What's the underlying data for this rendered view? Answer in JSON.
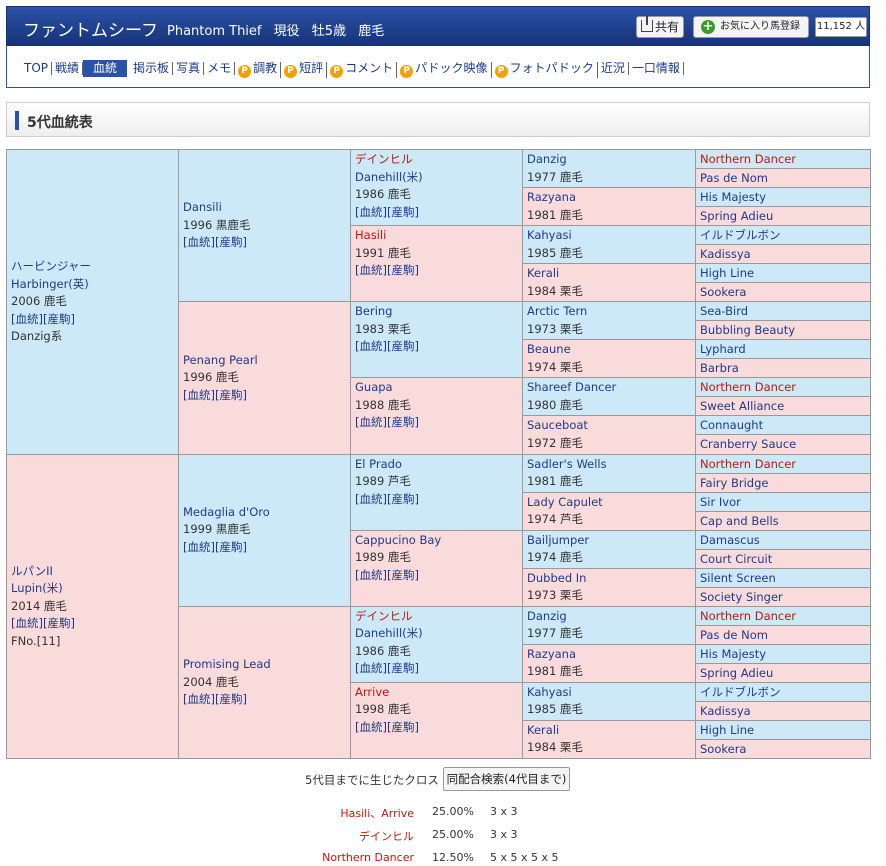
{
  "header": {
    "title": "ファントムシーフ",
    "name_en": "Phantom Thief",
    "status": "現役",
    "sex_age": "牡5歳",
    "color": "鹿毛",
    "share_label": "共有",
    "fav_label": "お気に入り馬登録",
    "fav_count": "11,152 人"
  },
  "nav": {
    "items": [
      "TOP",
      "戦績",
      "血統",
      "掲示板",
      "写真",
      "メモ",
      "調教",
      "短評",
      "コメント",
      "パドック映像",
      "フォトパドック",
      "近況",
      "一口情報"
    ],
    "active": "血統",
    "premium_badge": "P"
  },
  "section": {
    "title": "5代血統表"
  },
  "pedigree": {
    "link1": "[血統]",
    "link2": "[産駒]",
    "g1": [
      {
        "name_ja": "ハービンジャー",
        "name": "Harbinger(英)",
        "info": "2006 鹿毛",
        "extra": "Danzig系"
      },
      {
        "name_ja": "ルパンII",
        "name": "Lupin(米)",
        "info": "2014 鹿毛",
        "extra": "FNo.[11]"
      }
    ],
    "g2": [
      {
        "name": "Dansili",
        "info": "1996 黒鹿毛"
      },
      {
        "name": "Penang Pearl",
        "info": "1996 鹿毛"
      },
      {
        "name": "Medaglia d'Oro",
        "info": "1999 黒鹿毛"
      },
      {
        "name": "Promising Lead",
        "info": "2004 鹿毛"
      }
    ],
    "g3": [
      {
        "name": "デインヒル",
        "name2": "Danehill(米)",
        "info": "1986 鹿毛"
      },
      {
        "name": "Hasili",
        "info": "1991 鹿毛"
      },
      {
        "name": "Bering",
        "info": "1983 栗毛"
      },
      {
        "name": "Guapa",
        "info": "1988 鹿毛"
      },
      {
        "name": "El Prado",
        "info": "1989 芦毛"
      },
      {
        "name": "Cappucino Bay",
        "info": "1989 鹿毛"
      },
      {
        "name": "デインヒル",
        "name2": "Danehill(米)",
        "info": "1986 鹿毛"
      },
      {
        "name": "Arrive",
        "info": "1998 鹿毛"
      }
    ],
    "g4": [
      {
        "name": "Danzig",
        "info": "1977 鹿毛"
      },
      {
        "name": "Razyana",
        "info": "1981 鹿毛"
      },
      {
        "name": "Kahyasi",
        "info": "1985 鹿毛"
      },
      {
        "name": "Kerali",
        "info": "1984 栗毛"
      },
      {
        "name": "Arctic Tern",
        "info": "1973 栗毛"
      },
      {
        "name": "Beaune",
        "info": "1974 栗毛"
      },
      {
        "name": "Shareef Dancer",
        "info": "1980 鹿毛"
      },
      {
        "name": "Sauceboat",
        "info": "1972 鹿毛"
      },
      {
        "name": "Sadler's Wells",
        "info": "1981 鹿毛"
      },
      {
        "name": "Lady Capulet",
        "info": "1974 芦毛"
      },
      {
        "name": "Bailjumper",
        "info": "1974 鹿毛"
      },
      {
        "name": "Dubbed In",
        "info": "1973 栗毛"
      },
      {
        "name": "Danzig",
        "info": "1977 鹿毛"
      },
      {
        "name": "Razyana",
        "info": "1981 鹿毛"
      },
      {
        "name": "Kahyasi",
        "info": "1985 鹿毛"
      },
      {
        "name": "Kerali",
        "info": "1984 栗毛"
      }
    ],
    "g5": [
      "Northern Dancer",
      "Pas de Nom",
      "His Majesty",
      "Spring Adieu",
      "イルドブルボン",
      "Kadissya",
      "High Line",
      "Sookera",
      "Sea-Bird",
      "Bubbling Beauty",
      "Lyphard",
      "Barbra",
      "Northern Dancer",
      "Sweet Alliance",
      "Connaught",
      "Cranberry Sauce",
      "Northern Dancer",
      "Fairy Bridge",
      "Sir Ivor",
      "Cap and Bells",
      "Damascus",
      "Court Circuit",
      "Silent Screen",
      "Society Singer",
      "Northern Dancer",
      "Pas de Nom",
      "His Majesty",
      "Spring Adieu",
      "イルドブルボン",
      "Kadissya",
      "High Line",
      "Sookera"
    ]
  },
  "cross": {
    "label": "5代目までに生じたクロス",
    "search_button": "同配合検索(4代目まで)",
    "rows": [
      {
        "name": "Hasili、Arrive",
        "pct": "25.00%",
        "pattern": "3 x 3"
      },
      {
        "name": "デインヒル",
        "pct": "25.00%",
        "pattern": "3 x 3"
      },
      {
        "name": "Northern Dancer",
        "pct": "12.50%",
        "pattern": "5 x 5 x 5 x 5"
      }
    ]
  },
  "colors": {
    "header_bg": "#1d3f8c",
    "sire_bg": "#cde9f8",
    "dam_bg": "#fadbdb",
    "cross_red": "#c0180a",
    "link_blue": "#1f3a8a"
  }
}
